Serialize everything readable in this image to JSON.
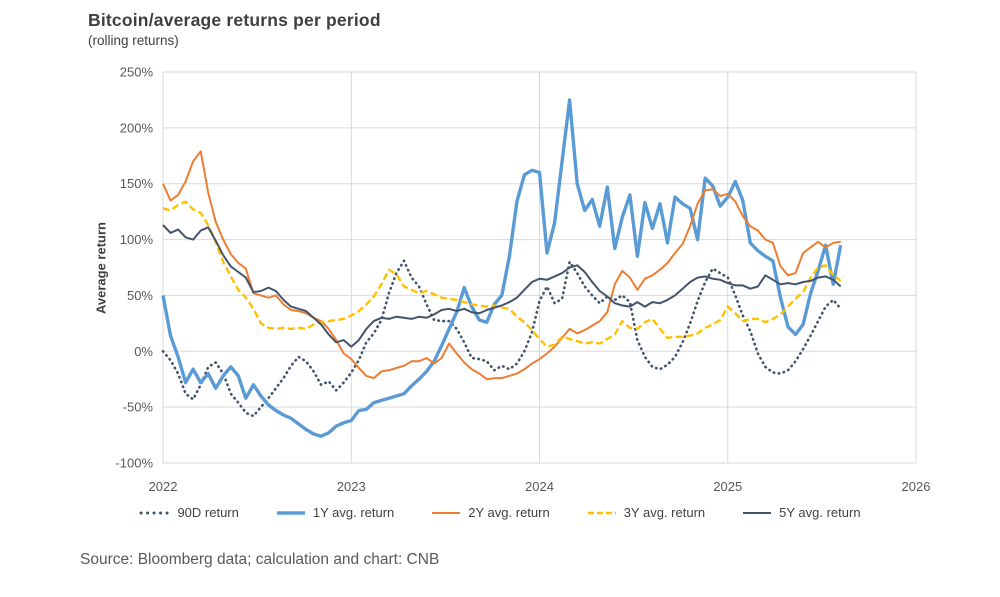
{
  "header": {
    "title": "Bitcoin/average returns per period",
    "subtitle": "(rolling returns)"
  },
  "footer": {
    "source": "Source: Bloomberg data; calculation and chart: CNB"
  },
  "colors": {
    "grid": "#D9D9D9",
    "axis_text": "#595959",
    "label_text": "#404040",
    "blue": "#5B9BD5",
    "orange": "#ED7D31",
    "yellow": "#FFC000",
    "navy": "#44546A"
  },
  "chart_data": {
    "type": "line",
    "title": "Bitcoin/average returns per period",
    "subtitle": "(rolling returns)",
    "ylabel": "Average return",
    "xlabel": "",
    "grid": true,
    "legend_position": "bottom",
    "xlim": [
      2022,
      2026
    ],
    "ylim": [
      -100,
      250
    ],
    "y_ticks": [
      {
        "value": 250,
        "label": "250%"
      },
      {
        "value": 200,
        "label": "200%"
      },
      {
        "value": 150,
        "label": "150%"
      },
      {
        "value": 100,
        "label": "100%"
      },
      {
        "value": 50,
        "label": "50%"
      },
      {
        "value": 0,
        "label": "0%"
      },
      {
        "value": -50,
        "label": "-50%"
      },
      {
        "value": -100,
        "label": "-100%"
      }
    ],
    "x_ticks": [
      {
        "value": 2022,
        "label": "2022"
      },
      {
        "value": 2023,
        "label": "2023"
      },
      {
        "value": 2024,
        "label": "2024"
      },
      {
        "value": 2025,
        "label": "2025"
      },
      {
        "value": 2026,
        "label": "2026"
      }
    ],
    "t_start": 2022.0,
    "t_step": 0.04,
    "unit": "%",
    "series": [
      {
        "id": "90d-return",
        "name": "90D return",
        "color": "#44546A",
        "width": 2.6,
        "dash": "dot",
        "values": [
          0,
          -8,
          -20,
          -38,
          -43,
          -30,
          -14,
          -10,
          -20,
          -38,
          -46,
          -55,
          -58,
          -50,
          -42,
          -33,
          -24,
          -13,
          -5,
          -9,
          -18,
          -30,
          -27,
          -35,
          -28,
          -19,
          -8,
          8,
          16,
          28,
          52,
          70,
          81,
          66,
          58,
          42,
          28,
          27,
          27,
          20,
          8,
          -6,
          -7,
          -9,
          -17,
          -13,
          -16,
          -11,
          0,
          17,
          45,
          58,
          43,
          47,
          80,
          70,
          58,
          50,
          43,
          49,
          46,
          50,
          44,
          10,
          -5,
          -14,
          -16,
          -12,
          -5,
          8,
          25,
          45,
          62,
          74,
          70,
          66,
          50,
          32,
          18,
          -2,
          -14,
          -19,
          -20,
          -17,
          -9,
          2,
          14,
          27,
          40,
          46,
          38
        ]
      },
      {
        "id": "1y-avg-return",
        "name": "1Y avg. return",
        "color": "#5B9BD5",
        "width": 3.4,
        "dash": "solid",
        "values": [
          50,
          14,
          -5,
          -28,
          -16,
          -28,
          -20,
          -33,
          -22,
          -14,
          -22,
          -42,
          -30,
          -40,
          -48,
          -53,
          -57,
          -60,
          -65,
          -70,
          -74,
          -76,
          -73,
          -67,
          -64,
          -62,
          -53,
          -52,
          -46,
          -44,
          -42,
          -40,
          -38,
          -31,
          -25,
          -18,
          -9,
          5,
          20,
          35,
          57,
          40,
          28,
          26,
          42,
          50,
          85,
          134,
          158,
          162,
          160,
          88,
          115,
          170,
          225,
          150,
          126,
          136,
          112,
          147,
          92,
          120,
          140,
          85,
          133,
          110,
          132,
          97,
          138,
          132,
          128,
          100,
          155,
          148,
          130,
          138,
          152,
          135,
          97,
          90,
          85,
          81,
          48,
          22,
          15,
          24,
          52,
          72,
          95,
          60,
          95
        ]
      },
      {
        "id": "2y-avg-return",
        "name": "2Y avg. return",
        "color": "#ED7D31",
        "width": 2,
        "dash": "solid",
        "values": [
          150,
          135,
          140,
          152,
          170,
          179,
          142,
          116,
          100,
          87,
          79,
          74,
          52,
          50,
          48,
          50,
          42,
          37,
          36,
          34,
          30,
          27,
          20,
          10,
          -2,
          -7,
          -15,
          -22,
          -24,
          -18,
          -17,
          -15,
          -13,
          -9,
          -9,
          -6,
          -11,
          -6,
          7,
          -2,
          -10,
          -16,
          -20,
          -25,
          -24,
          -24,
          -22,
          -20,
          -16,
          -11,
          -7,
          -2,
          4,
          12,
          20,
          16,
          19,
          23,
          27,
          35,
          60,
          72,
          66,
          55,
          65,
          68,
          73,
          79,
          88,
          96,
          112,
          132,
          144,
          145,
          139,
          141,
          134,
          121,
          112,
          108,
          100,
          97,
          76,
          68,
          70,
          88,
          93,
          98,
          93,
          97,
          98
        ]
      },
      {
        "id": "3y-avg-return",
        "name": "3Y avg. return",
        "color": "#FFC000",
        "width": 2.4,
        "dash": "dash",
        "values": [
          128,
          126,
          131,
          134,
          127,
          124,
          113,
          98,
          80,
          67,
          55,
          48,
          38,
          25,
          21,
          20,
          21,
          20,
          21,
          20,
          24,
          26,
          27,
          28,
          29,
          32,
          36,
          42,
          49,
          60,
          73,
          69,
          58,
          55,
          52,
          54,
          51,
          48,
          47,
          46,
          44,
          42,
          41,
          40,
          41,
          39,
          38,
          31,
          26,
          19,
          11,
          4,
          6,
          13,
          11,
          9,
          7,
          8,
          7,
          11,
          15,
          27,
          21,
          20,
          26,
          29,
          20,
          12,
          13,
          13,
          14,
          16,
          21,
          24,
          28,
          40,
          34,
          27,
          29,
          29,
          26,
          29,
          33,
          40,
          47,
          53,
          66,
          75,
          77,
          68,
          63
        ]
      },
      {
        "id": "5y-avg-return",
        "name": "5Y avg. return",
        "color": "#44546A",
        "width": 2,
        "dash": "solid",
        "values": [
          113,
          106,
          109,
          102,
          100,
          108,
          111,
          99,
          86,
          76,
          71,
          66,
          53,
          54,
          57,
          54,
          46,
          40,
          38,
          36,
          30,
          24,
          15,
          8,
          10,
          4,
          10,
          20,
          27,
          30,
          29,
          31,
          30,
          29,
          31,
          30,
          33,
          37,
          38,
          36,
          38,
          35,
          34,
          37,
          39,
          41,
          44,
          48,
          55,
          62,
          65,
          64,
          67,
          70,
          75,
          77,
          71,
          62,
          54,
          49,
          43,
          41,
          40,
          44,
          40,
          44,
          43,
          46,
          50,
          56,
          62,
          66,
          67,
          65,
          64,
          61,
          59,
          59,
          56,
          58,
          68,
          64,
          60,
          61,
          60,
          62,
          63,
          66,
          67,
          64,
          58
        ]
      }
    ]
  }
}
